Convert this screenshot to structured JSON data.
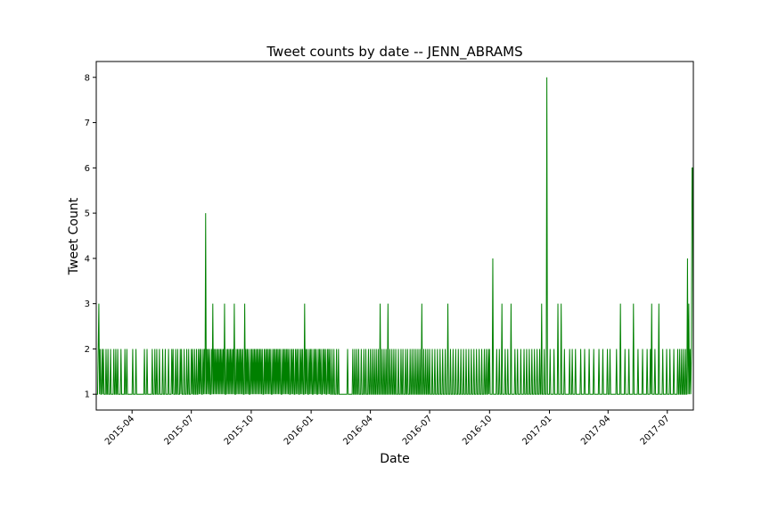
{
  "chart_data": {
    "type": "line",
    "title": "Tweet counts by date -- JENN_ABRAMS",
    "xlabel": "Date",
    "ylabel": "Tweet Count",
    "xlim": [
      "2015-02-05",
      "2017-08-10"
    ],
    "ylim": [
      0.65,
      8.35
    ],
    "yticks": [
      1,
      2,
      3,
      4,
      5,
      6,
      7,
      8
    ],
    "xticks": [
      "2015-04",
      "2015-07",
      "2015-10",
      "2016-01",
      "2016-04",
      "2016-07",
      "2016-10",
      "2017-01",
      "2017-04",
      "2017-07"
    ],
    "grid": false,
    "color": "#008000",
    "series": [
      {
        "baseline": 1,
        "x": [
          "2015-02-08",
          "2015-02-09",
          "2015-02-11",
          "2015-02-14",
          "2015-02-16",
          "2015-02-20",
          "2015-02-23",
          "2015-02-27",
          "2015-03-04",
          "2015-03-07",
          "2015-03-10",
          "2015-03-15",
          "2015-03-21",
          "2015-03-24",
          "2015-04-02",
          "2015-04-07",
          "2015-04-20",
          "2015-04-24",
          "2015-05-02",
          "2015-05-06",
          "2015-05-09",
          "2015-05-13",
          "2015-05-18",
          "2015-05-22",
          "2015-05-27",
          "2015-06-01",
          "2015-06-03",
          "2015-06-07",
          "2015-06-10",
          "2015-06-14",
          "2015-06-16",
          "2015-06-20",
          "2015-06-24",
          "2015-06-27",
          "2015-07-01",
          "2015-07-03",
          "2015-07-06",
          "2015-07-09",
          "2015-07-12",
          "2015-07-14",
          "2015-07-16",
          "2015-07-19",
          "2015-07-21",
          "2015-07-23",
          "2015-07-25",
          "2015-07-27",
          "2015-07-29",
          "2015-08-01",
          "2015-08-03",
          "2015-08-05",
          "2015-08-07",
          "2015-08-09",
          "2015-08-11",
          "2015-08-13",
          "2015-08-15",
          "2015-08-17",
          "2015-08-19",
          "2015-08-21",
          "2015-08-24",
          "2015-08-26",
          "2015-08-28",
          "2015-08-30",
          "2015-09-01",
          "2015-09-03",
          "2015-09-05",
          "2015-09-08",
          "2015-09-10",
          "2015-09-12",
          "2015-09-14",
          "2015-09-16",
          "2015-09-18",
          "2015-09-21",
          "2015-09-23",
          "2015-09-25",
          "2015-09-27",
          "2015-09-30",
          "2015-10-02",
          "2015-10-04",
          "2015-10-06",
          "2015-10-08",
          "2015-10-10",
          "2015-10-12",
          "2015-10-14",
          "2015-10-16",
          "2015-10-18",
          "2015-10-21",
          "2015-10-23",
          "2015-10-25",
          "2015-10-27",
          "2015-10-29",
          "2015-10-31",
          "2015-11-03",
          "2015-11-05",
          "2015-11-07",
          "2015-11-09",
          "2015-11-11",
          "2015-11-13",
          "2015-11-15",
          "2015-11-18",
          "2015-11-20",
          "2015-11-22",
          "2015-11-24",
          "2015-11-26",
          "2015-11-28",
          "2015-12-01",
          "2015-12-03",
          "2015-12-05",
          "2015-12-08",
          "2015-12-10",
          "2015-12-12",
          "2015-12-15",
          "2015-12-17",
          "2015-12-19",
          "2015-12-22",
          "2015-12-24",
          "2015-12-26",
          "2015-12-29",
          "2015-12-31",
          "2016-01-02",
          "2016-01-05",
          "2016-01-07",
          "2016-01-09",
          "2016-01-12",
          "2016-01-14",
          "2016-01-16",
          "2016-01-19",
          "2016-01-21",
          "2016-01-23",
          "2016-01-26",
          "2016-01-28",
          "2016-01-30",
          "2016-02-02",
          "2016-02-05",
          "2016-02-09",
          "2016-02-12",
          "2016-02-26",
          "2016-03-05",
          "2016-03-08",
          "2016-03-11",
          "2016-03-14",
          "2016-03-18",
          "2016-03-22",
          "2016-03-25",
          "2016-03-29",
          "2016-04-01",
          "2016-04-04",
          "2016-04-07",
          "2016-04-10",
          "2016-04-13",
          "2016-04-16",
          "2016-04-19",
          "2016-04-22",
          "2016-04-25",
          "2016-04-28",
          "2016-05-01",
          "2016-05-04",
          "2016-05-07",
          "2016-05-10",
          "2016-05-14",
          "2016-05-18",
          "2016-05-21",
          "2016-05-25",
          "2016-05-28",
          "2016-06-01",
          "2016-06-04",
          "2016-06-07",
          "2016-06-10",
          "2016-06-13",
          "2016-06-16",
          "2016-06-19",
          "2016-06-22",
          "2016-06-25",
          "2016-06-28",
          "2016-07-01",
          "2016-07-05",
          "2016-07-09",
          "2016-07-13",
          "2016-07-17",
          "2016-07-21",
          "2016-07-25",
          "2016-07-29",
          "2016-08-02",
          "2016-08-06",
          "2016-08-10",
          "2016-08-14",
          "2016-08-18",
          "2016-08-22",
          "2016-08-26",
          "2016-08-30",
          "2016-09-03",
          "2016-09-07",
          "2016-09-11",
          "2016-09-15",
          "2016-09-19",
          "2016-09-23",
          "2016-09-26",
          "2016-09-29",
          "2016-10-01",
          "2016-10-06",
          "2016-10-12",
          "2016-10-16",
          "2016-10-20",
          "2016-10-25",
          "2016-10-29",
          "2016-11-03",
          "2016-11-09",
          "2016-11-13",
          "2016-11-18",
          "2016-11-23",
          "2016-11-27",
          "2016-12-01",
          "2016-12-05",
          "2016-12-09",
          "2016-12-13",
          "2016-12-17",
          "2016-12-20",
          "2016-12-24",
          "2016-12-28",
          "2017-01-02",
          "2017-01-08",
          "2017-01-14",
          "2017-01-19",
          "2017-01-24",
          "2017-02-01",
          "2017-02-05",
          "2017-02-10",
          "2017-02-18",
          "2017-02-24",
          "2017-03-03",
          "2017-03-10",
          "2017-03-18",
          "2017-03-24",
          "2017-03-31",
          "2017-04-04",
          "2017-04-14",
          "2017-04-20",
          "2017-04-27",
          "2017-05-03",
          "2017-05-10",
          "2017-05-17",
          "2017-05-24",
          "2017-05-31",
          "2017-06-05",
          "2017-06-07",
          "2017-06-12",
          "2017-06-18",
          "2017-06-24",
          "2017-06-30",
          "2017-07-05",
          "2017-07-11",
          "2017-07-17",
          "2017-07-20",
          "2017-07-23",
          "2017-07-26",
          "2017-07-29",
          "2017-08-01",
          "2017-08-03",
          "2017-08-05",
          "2017-08-07",
          "2017-08-08",
          "2017-08-09"
        ],
        "y": [
          2,
          3,
          2,
          2,
          2,
          2,
          2,
          2,
          2,
          2,
          2,
          2,
          2,
          2,
          2,
          2,
          2,
          2,
          2,
          2,
          2,
          2,
          2,
          2,
          2,
          2,
          2,
          2,
          2,
          2,
          2,
          2,
          2,
          2,
          2,
          2,
          2,
          2,
          2,
          2,
          2,
          2,
          2,
          5,
          2,
          2,
          2,
          2,
          3,
          2,
          2,
          2,
          2,
          2,
          2,
          2,
          2,
          3,
          2,
          2,
          2,
          2,
          2,
          2,
          3,
          2,
          2,
          2,
          2,
          2,
          2,
          3,
          2,
          2,
          2,
          2,
          2,
          2,
          2,
          2,
          2,
          2,
          2,
          2,
          2,
          2,
          2,
          2,
          2,
          2,
          2,
          2,
          2,
          2,
          2,
          2,
          2,
          2,
          2,
          2,
          2,
          2,
          2,
          2,
          2,
          2,
          2,
          2,
          2,
          2,
          2,
          2,
          2,
          3,
          2,
          2,
          2,
          2,
          2,
          2,
          2,
          2,
          2,
          2,
          2,
          2,
          2,
          2,
          2,
          2,
          2,
          2,
          2,
          2,
          2,
          2,
          2,
          2,
          2,
          2,
          2,
          2,
          2,
          2,
          2,
          2,
          2,
          2,
          2,
          3,
          2,
          2,
          2,
          3,
          2,
          2,
          2,
          2,
          2,
          2,
          2,
          2,
          2,
          2,
          2,
          2,
          2,
          2,
          2,
          3,
          2,
          2,
          2,
          2,
          2,
          2,
          2,
          2,
          2,
          2,
          3,
          2,
          2,
          2,
          2,
          2,
          2,
          2,
          2,
          2,
          2,
          2,
          2,
          2,
          2,
          2,
          2,
          2,
          4,
          2,
          2,
          3,
          2,
          2,
          3,
          2,
          2,
          2,
          2,
          2,
          2,
          2,
          2,
          2,
          2,
          3,
          2,
          8,
          2,
          2,
          3,
          3,
          2,
          2,
          2,
          2,
          2,
          2,
          2,
          2,
          2,
          2,
          2,
          2,
          2,
          3,
          2,
          2,
          3,
          2,
          2,
          2,
          2,
          3,
          2,
          3,
          2,
          2,
          2,
          2,
          2,
          2,
          2,
          2,
          2,
          4,
          3,
          2,
          2,
          6,
          6
        ]
      }
    ]
  }
}
